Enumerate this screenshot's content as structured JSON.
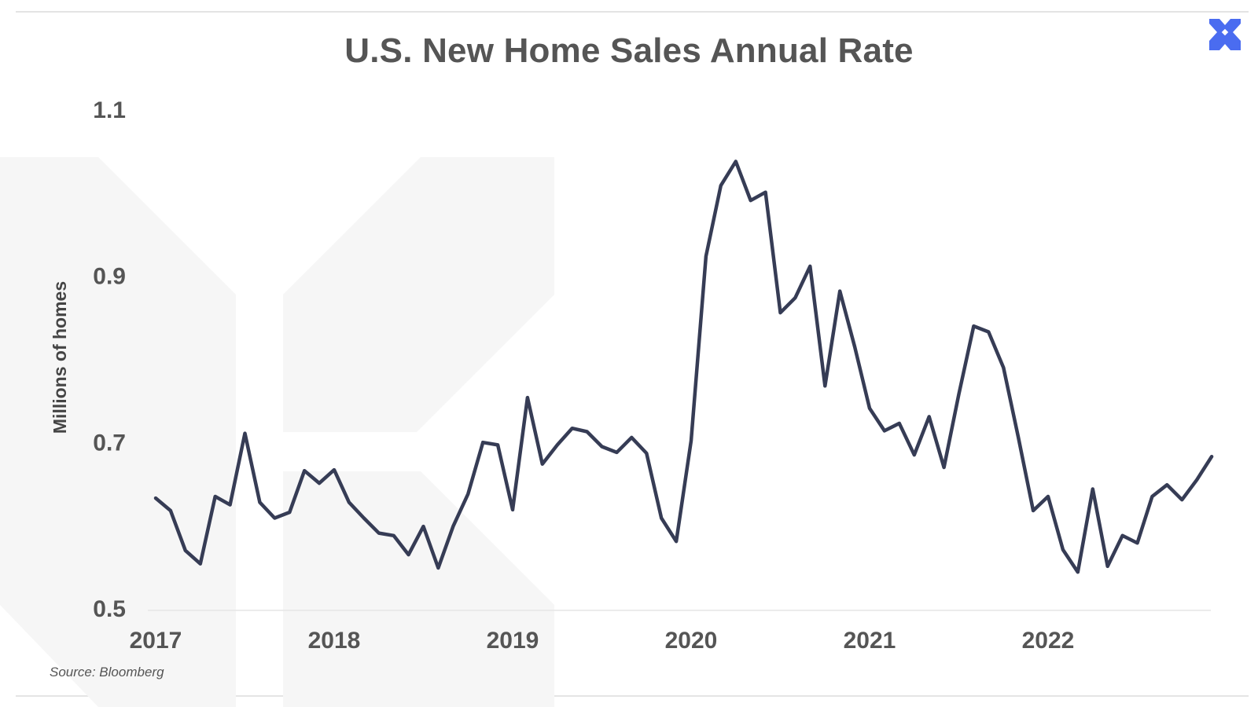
{
  "chart_data": {
    "type": "line",
    "title": "U.S. New Home Sales Annual Rate",
    "xlabel": "",
    "ylabel": "Millions of homes",
    "x_tick_labels": [
      "2017",
      "2018",
      "2019",
      "2020",
      "2021",
      "2022"
    ],
    "y_ticks": [
      0.5,
      0.7,
      0.9,
      1.1
    ],
    "y_tick_labels": [
      "0.5",
      "0.7",
      "0.9",
      "1.1"
    ],
    "ylim": [
      0.5,
      1.1
    ],
    "grid": false,
    "legend": "none",
    "line_color": "#363c55",
    "series": [
      {
        "x": [
          "2017-01",
          "2017-02",
          "2017-03",
          "2017-04",
          "2017-05",
          "2017-06",
          "2017-07",
          "2017-08",
          "2017-09",
          "2017-10",
          "2017-11",
          "2017-12",
          "2018-01",
          "2018-02",
          "2018-03",
          "2018-04",
          "2018-05",
          "2018-06",
          "2018-07",
          "2018-08",
          "2018-09",
          "2018-10",
          "2018-11",
          "2018-12",
          "2019-01",
          "2019-02",
          "2019-03",
          "2019-04",
          "2019-05",
          "2019-06",
          "2019-07",
          "2019-08",
          "2019-09",
          "2019-10",
          "2019-11",
          "2019-12",
          "2020-01",
          "2020-02",
          "2020-03",
          "2020-04",
          "2020-05",
          "2020-06",
          "2020-07",
          "2020-08",
          "2020-09",
          "2020-10",
          "2020-11",
          "2020-12",
          "2021-01",
          "2021-02",
          "2021-03",
          "2021-04",
          "2021-05",
          "2021-06",
          "2021-07",
          "2021-08",
          "2021-09",
          "2021-10",
          "2021-11",
          "2021-12",
          "2022-01",
          "2022-02",
          "2022-03",
          "2022-04",
          "2022-05",
          "2022-06",
          "2022-07",
          "2022-08",
          "2022-09",
          "2022-10",
          "2022-11",
          "2022-12"
        ],
        "values": [
          0.635,
          0.62,
          0.572,
          0.556,
          0.637,
          0.627,
          0.713,
          0.63,
          0.611,
          0.618,
          0.668,
          0.653,
          0.669,
          0.63,
          0.611,
          0.593,
          0.59,
          0.567,
          0.601,
          0.551,
          0.601,
          0.64,
          0.702,
          0.699,
          0.621,
          0.756,
          0.676,
          0.699,
          0.719,
          0.715,
          0.697,
          0.69,
          0.708,
          0.689,
          0.611,
          0.583,
          0.704,
          0.926,
          1.011,
          1.04,
          0.993,
          1.003,
          0.858,
          0.876,
          0.914,
          0.77,
          0.884,
          0.817,
          0.743,
          0.716,
          0.725,
          0.687,
          0.733,
          0.672,
          0.76,
          0.842,
          0.835,
          0.792,
          0.708,
          0.62,
          0.637,
          0.573,
          0.546,
          0.646,
          0.553,
          0.59,
          0.581,
          0.637,
          0.651,
          0.633,
          0.657,
          0.685
        ]
      }
    ]
  },
  "source": "Source: Bloomberg",
  "logo": {
    "name": "x-logo-icon",
    "color": "#4a6cf0"
  }
}
